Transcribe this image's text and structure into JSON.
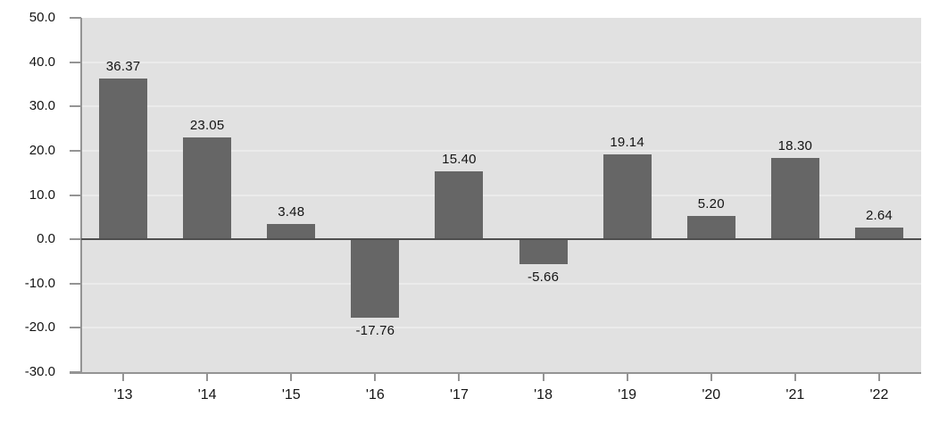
{
  "chart_data": {
    "type": "bar",
    "title": "",
    "xlabel": "",
    "ylabel": "",
    "categories": [
      "'13",
      "'14",
      "'15",
      "'16",
      "'17",
      "'18",
      "'19",
      "'20",
      "'21",
      "'22"
    ],
    "values": [
      36.37,
      23.05,
      3.48,
      -17.76,
      15.4,
      -5.66,
      19.14,
      5.2,
      18.3,
      2.64
    ],
    "value_labels": [
      "36.37",
      "23.05",
      "3.48",
      "-17.76",
      "15.40",
      "-5.66",
      "19.14",
      "5.20",
      "18.30",
      "2.64"
    ],
    "ylim": [
      -30,
      50
    ],
    "yticks": [
      50,
      40,
      30,
      20,
      10,
      0,
      -10,
      -20,
      -30
    ],
    "ytick_labels": [
      "50.0",
      "40.0",
      "30.0",
      "20.0",
      "10.0",
      "0.0",
      "-10.0",
      "-20.0",
      "-30.0"
    ],
    "grid": true,
    "legend_position": "none",
    "colors": {
      "bar": "#666666",
      "plot_background": "#e1e1e1",
      "gridline": "#ebebeb",
      "zero_line": "#4e4e4e",
      "axis": "#949494",
      "text": "#141414"
    }
  }
}
